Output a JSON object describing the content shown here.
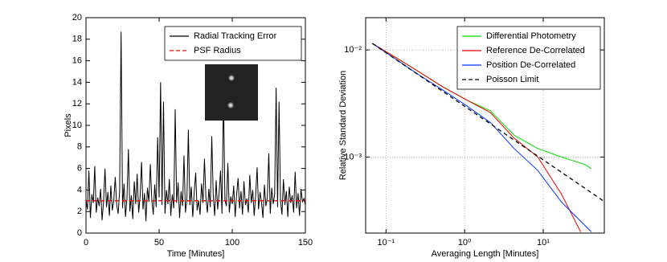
{
  "chart_data": [
    {
      "type": "line",
      "xlabel": "Time [Minutes]",
      "ylabel": "Pixels",
      "xlim": [
        0,
        150
      ],
      "ylim": [
        0,
        20
      ],
      "xticks": [
        0,
        50,
        100,
        150
      ],
      "yticks": [
        0,
        2,
        4,
        6,
        8,
        10,
        12,
        14,
        16,
        18,
        20
      ],
      "grid": false,
      "legend": "upper right",
      "series": [
        {
          "name": "Radial Tracking Error",
          "color": "#000000",
          "style": "solid",
          "x": [
            0,
            1,
            2,
            3,
            4,
            5,
            6,
            7,
            8,
            9,
            10,
            11,
            12,
            13,
            14,
            15,
            16,
            17,
            18,
            19,
            20,
            21,
            22,
            23,
            24,
            25,
            26,
            27,
            28,
            29,
            30,
            31,
            32,
            33,
            34,
            35,
            36,
            37,
            38,
            39,
            40,
            41,
            42,
            43,
            44,
            45,
            46,
            47,
            48,
            49,
            50,
            51,
            52,
            53,
            54,
            55,
            56,
            57,
            58,
            59,
            60,
            61,
            62,
            63,
            64,
            65,
            66,
            67,
            68,
            69,
            70,
            71,
            72,
            73,
            74,
            75,
            76,
            77,
            78,
            79,
            80,
            81,
            82,
            83,
            84,
            85,
            86,
            87,
            88,
            89,
            90,
            91,
            92,
            93,
            94,
            95,
            96,
            97,
            98,
            99,
            100,
            101,
            102,
            103,
            104,
            105,
            106,
            107,
            108,
            109,
            110,
            111,
            112,
            113,
            114,
            115,
            116,
            117,
            118,
            119,
            120,
            121,
            122,
            123,
            124,
            125,
            126,
            127,
            128,
            129,
            130,
            131,
            132,
            133,
            134,
            135,
            136,
            137,
            138,
            139,
            140,
            141,
            142,
            143,
            144,
            145,
            146,
            147,
            148,
            149,
            150
          ],
          "values": [
            3.1,
            2.2,
            5.8,
            1.4,
            3.6,
            2.8,
            6.2,
            1.9,
            3.3,
            2.5,
            4.1,
            1.2,
            2.9,
            6.0,
            2.4,
            3.8,
            1.6,
            4.4,
            2.1,
            3.0,
            5.2,
            2.6,
            1.8,
            3.9,
            18.7,
            2.3,
            4.6,
            1.5,
            3.2,
            7.8,
            2.0,
            3.5,
            1.3,
            4.8,
            2.7,
            5.5,
            1.9,
            3.4,
            6.6,
            2.2,
            3.7,
            1.1,
            4.2,
            2.9,
            6.4,
            3.1,
            1.7,
            4.5,
            2.4,
            8.9,
            3.3,
            14.0,
            2.6,
            12.2,
            1.8,
            4.0,
            2.7,
            5.0,
            1.6,
            3.6,
            2.3,
            11.5,
            2.8,
            4.7,
            1.4,
            3.9,
            2.5,
            7.2,
            1.9,
            3.2,
            9.6,
            2.6,
            4.3,
            1.5,
            3.8,
            5.6,
            2.1,
            3.0,
            1.7,
            4.6,
            2.8,
            6.9,
            3.3,
            1.9,
            4.1,
            2.4,
            9.0,
            3.5,
            1.6,
            4.9,
            2.2,
            3.7,
            5.8,
            1.8,
            13.0,
            3.1,
            2.5,
            6.5,
            1.9,
            3.4,
            2.7,
            4.4,
            1.5,
            3.6,
            5.1,
            2.3,
            3.9,
            1.7,
            4.8,
            2.6,
            3.2,
            1.9,
            5.4,
            2.8,
            4.0,
            1.6,
            3.5,
            6.1,
            2.2,
            3.8,
            2.9,
            1.4,
            4.5,
            2.5,
            3.3,
            7.4,
            1.8,
            4.2,
            2.7,
            3.6,
            13.5,
            2.4,
            12.2,
            3.0,
            1.7,
            5.0,
            2.6,
            3.9,
            1.5,
            4.3,
            2.8,
            3.5,
            1.9,
            5.7,
            2.3,
            3.7,
            1.6,
            4.1,
            2.9,
            3.2,
            2.6
          ]
        },
        {
          "name": "PSF Radius",
          "color": "#ff0000",
          "style": "dashed",
          "x": [
            0,
            150
          ],
          "values": [
            3,
            3
          ]
        }
      ]
    },
    {
      "type": "line",
      "xlabel": "Averaging Length [Minutes]",
      "ylabel": "Relative Standard Deviation",
      "xscale": "log",
      "yscale": "log",
      "xlim": [
        0.055,
        60
      ],
      "ylim": [
        0.000195,
        0.02
      ],
      "xticks": [
        {
          "value": 0.1,
          "label": "10⁻¹"
        },
        {
          "value": 1,
          "label": "10⁰"
        },
        {
          "value": 10,
          "label": "10¹"
        }
      ],
      "yticks": [
        {
          "value": 0.001,
          "label": "10⁻³"
        },
        {
          "value": 0.01,
          "label": "10⁻²"
        }
      ],
      "grid": true,
      "legend": "upper right",
      "series": [
        {
          "name": "Differential Photometry",
          "color": "#00dd00",
          "style": "solid",
          "x": [
            0.067,
            0.133,
            0.267,
            0.533,
            1.07,
            2.13,
            4.27,
            8.53,
            17.1,
            34.1,
            41
          ],
          "values": [
            0.0115,
            0.0085,
            0.0062,
            0.0045,
            0.0034,
            0.0027,
            0.0016,
            0.0012,
            0.001,
            0.00085,
            0.00078
          ]
        },
        {
          "name": "Reference De-Correlated",
          "color": "#ee0000",
          "style": "solid",
          "x": [
            0.067,
            0.133,
            0.267,
            0.533,
            1.07,
            2.13,
            4.27,
            8.53,
            17.1,
            30
          ],
          "values": [
            0.0115,
            0.0085,
            0.0062,
            0.0045,
            0.0034,
            0.0026,
            0.0015,
            0.001,
            0.00045,
            0.0002
          ]
        },
        {
          "name": "Position De-Correlated",
          "color": "#0033ff",
          "style": "solid",
          "x": [
            0.067,
            0.133,
            0.267,
            0.533,
            1.07,
            2.13,
            4.27,
            8.53,
            17.1,
            41
          ],
          "values": [
            0.0115,
            0.0082,
            0.0058,
            0.0042,
            0.003,
            0.0021,
            0.0012,
            0.00075,
            0.00038,
            0.0002
          ]
        },
        {
          "name": "Poisson Limit",
          "color": "#000000",
          "style": "dashed",
          "x": [
            0.067,
            0.133,
            0.267,
            0.533,
            1.07,
            2.13,
            4.27,
            8.53,
            17.1,
            34.1,
            60
          ],
          "values": [
            0.0115,
            0.00816,
            0.00576,
            0.00408,
            0.00288,
            0.00204,
            0.00144,
            0.00102,
            0.00072,
            0.00051,
            0.000384
          ]
        }
      ]
    }
  ]
}
